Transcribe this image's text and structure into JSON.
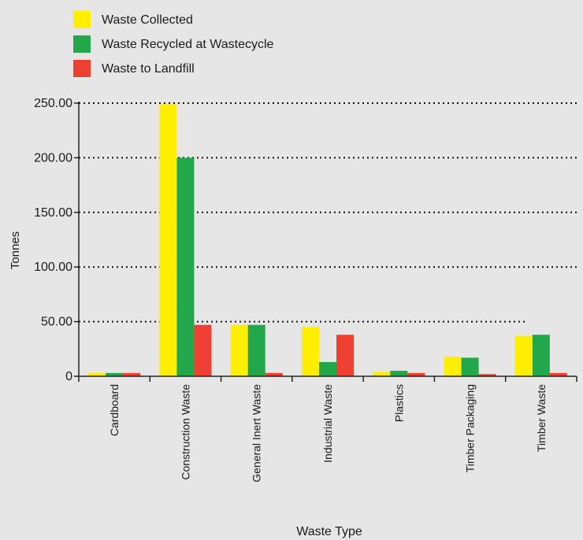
{
  "chart_data": {
    "type": "bar",
    "xlabel": "Waste Type",
    "ylabel": "Tonnes",
    "ylim": [
      0,
      250
    ],
    "y_ticks": [
      {
        "value": 0,
        "label": "0"
      },
      {
        "value": 50,
        "label": "50.00"
      },
      {
        "value": 100,
        "label": "100.00"
      },
      {
        "value": 150,
        "label": "150.00"
      },
      {
        "value": 200,
        "label": "200.00"
      },
      {
        "value": 250,
        "label": "250.00"
      }
    ],
    "grid": "horizontal dotted",
    "legend_position": "top-left",
    "categories": [
      "Cardboard",
      "Construction Waste",
      "General Inert Waste",
      "Industrial Waste",
      "Plastics",
      "Timber Packaging",
      "Timber Waste"
    ],
    "series": [
      {
        "name": "Waste Collected",
        "color": "#ffee00",
        "values": [
          3,
          249,
          47,
          45,
          4,
          18,
          37
        ]
      },
      {
        "name": "Waste Recycled at Wastecycle",
        "color": "#22a84a",
        "values": [
          3,
          200,
          47,
          13,
          5,
          17,
          38
        ]
      },
      {
        "name": "Waste to Landfill",
        "color": "#ee3f33",
        "values": [
          3,
          47,
          3,
          38,
          3,
          2,
          3
        ]
      }
    ]
  }
}
